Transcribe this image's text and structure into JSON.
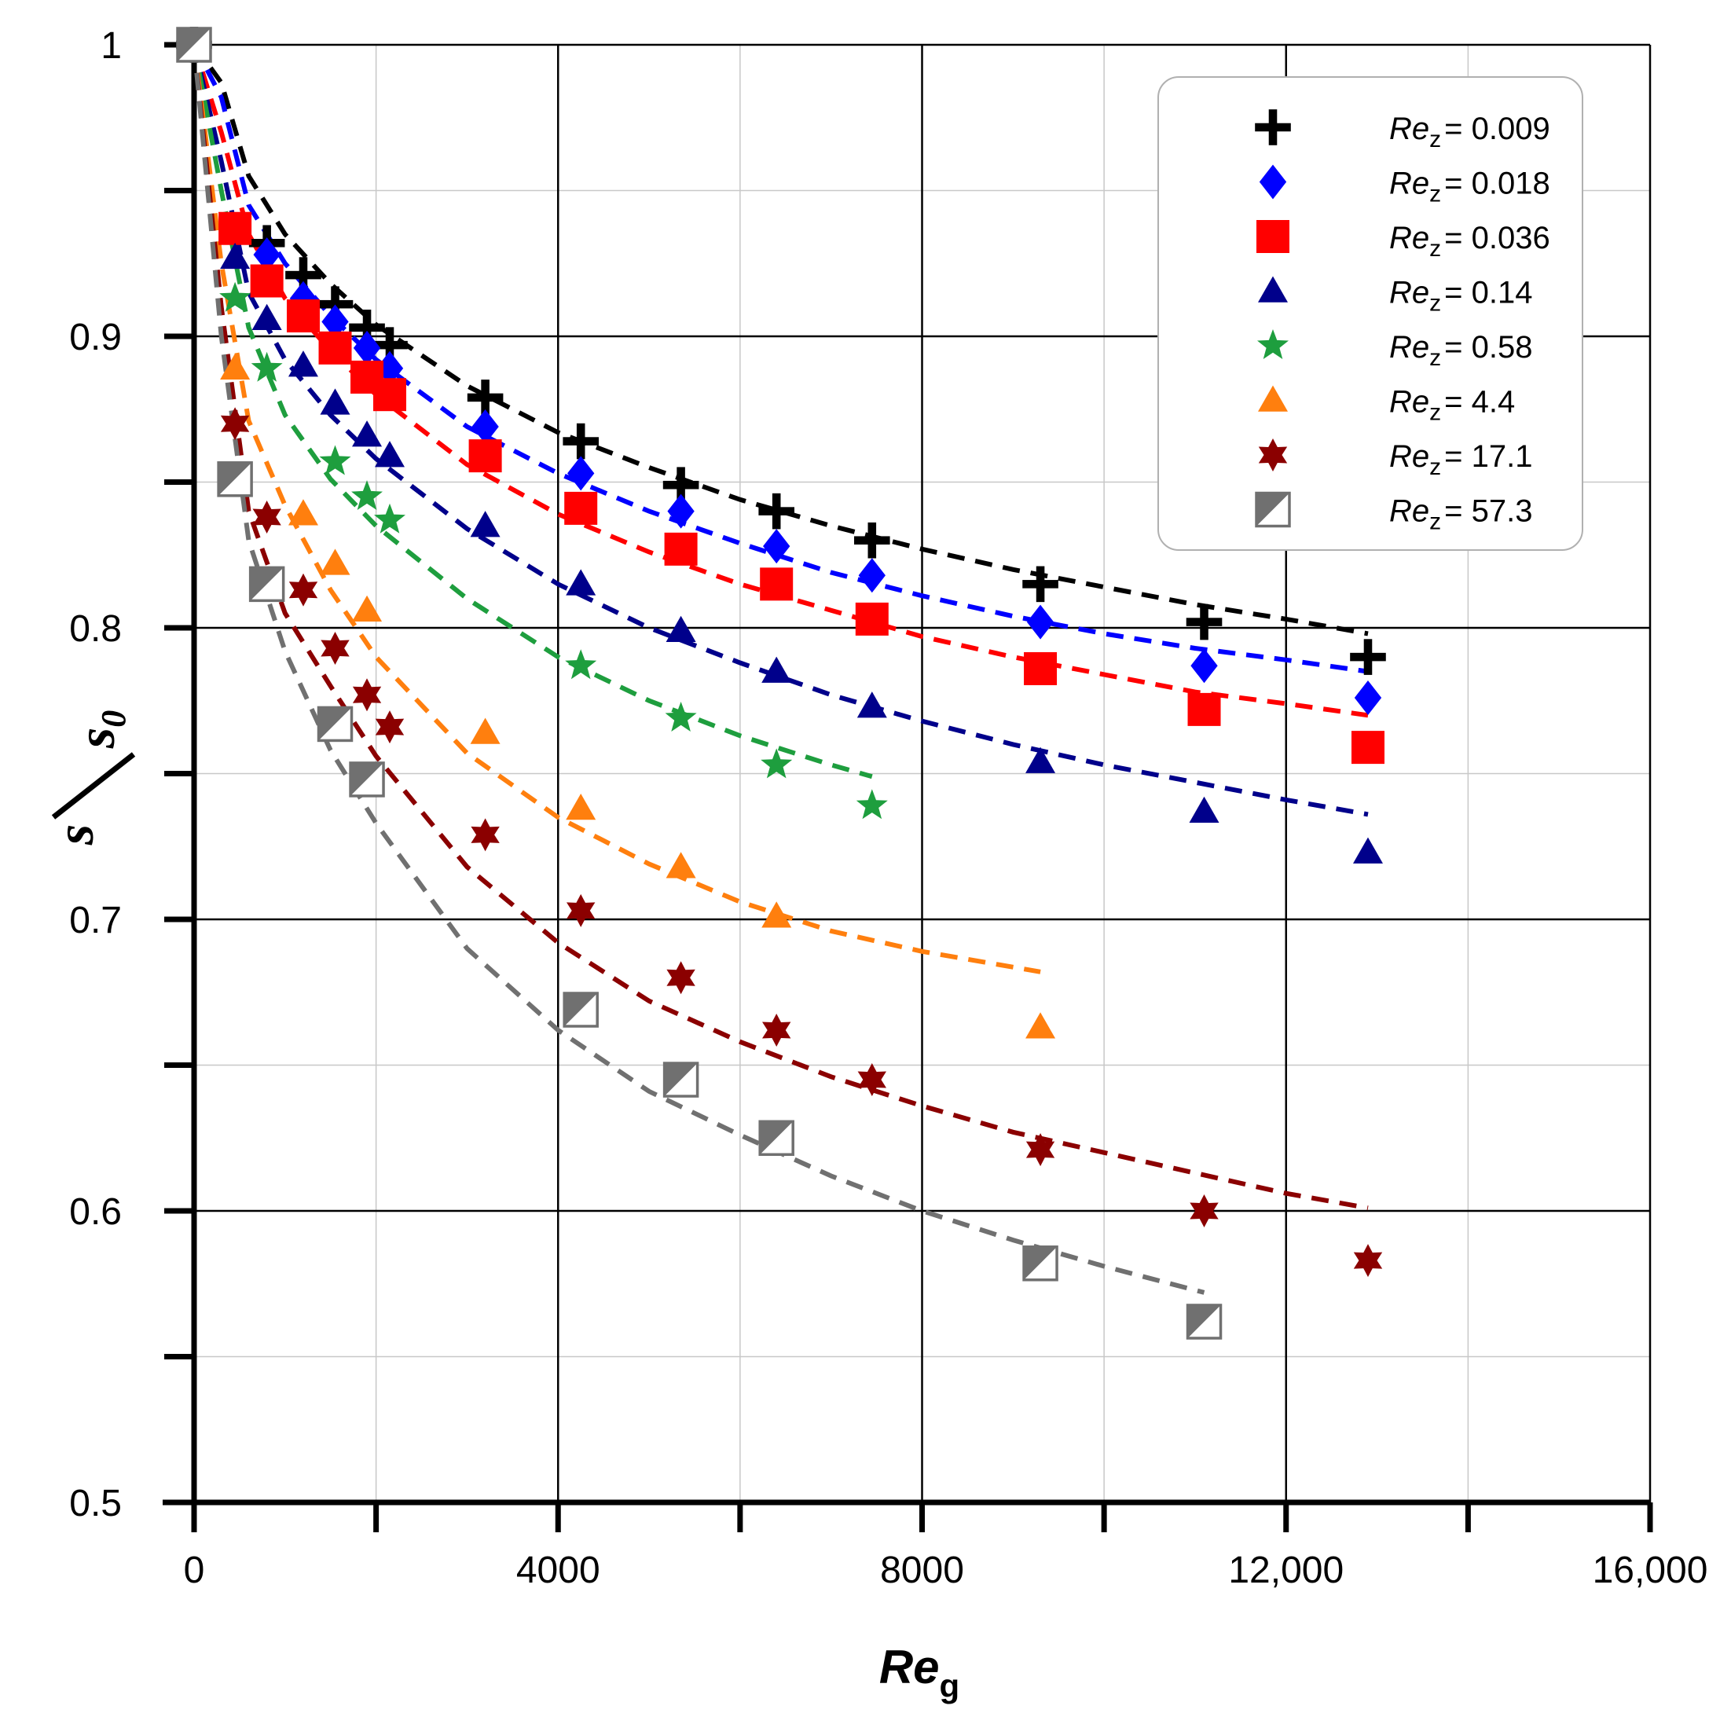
{
  "chart_data": {
    "type": "scatter",
    "title": "",
    "xlabel": "Re",
    "xlabel_sub": "g",
    "ylabel": "s",
    "ylabel_sub": "s",
    "ylabel_sub_index": "0",
    "xlim": [
      0,
      16000
    ],
    "ylim": [
      0.5,
      1.0
    ],
    "x_ticks": [
      0,
      4000,
      8000,
      12000,
      16000
    ],
    "x_tick_labels": [
      "0",
      "4000",
      "8000",
      "12,000",
      "16,000"
    ],
    "x_minor_ticks": [
      2000,
      6000,
      10000,
      14000
    ],
    "y_ticks": [
      0.5,
      0.6,
      0.7,
      0.8,
      0.9,
      1.0
    ],
    "y_tick_labels": [
      "0.5",
      "0.6",
      "0.7",
      "0.8",
      "0.9",
      "1"
    ],
    "y_minor_ticks": [
      0.55,
      0.65,
      0.75,
      0.85,
      0.95
    ],
    "grid": true,
    "legend_position": "top-right",
    "legend_prefix": "Re",
    "legend_prefix_sub": "z",
    "series": [
      {
        "name": "Re_z = 0.009",
        "label_value": "= 0.009",
        "marker": "plus",
        "color": "#000000",
        "x": [
          0,
          800,
          1200,
          1550,
          1900,
          2150,
          3200,
          4250,
          5350,
          6400,
          7450,
          9300,
          11100,
          12900
        ],
        "y": [
          1.0,
          0.932,
          0.921,
          0.911,
          0.903,
          0.897,
          0.879,
          0.864,
          0.849,
          0.84,
          0.83,
          0.815,
          0.802,
          0.79
        ],
        "fit_x": [
          0,
          300,
          600,
          1000,
          1500,
          2000,
          3000,
          4000,
          5000,
          6000,
          7000,
          8000,
          9000,
          10000,
          11000,
          12000,
          12900
        ],
        "fit_y": [
          1.0,
          0.987,
          0.955,
          0.935,
          0.918,
          0.904,
          0.883,
          0.867,
          0.855,
          0.844,
          0.835,
          0.827,
          0.82,
          0.814,
          0.808,
          0.803,
          0.798
        ]
      },
      {
        "name": "Re_z = 0.018",
        "label_value": "= 0.018",
        "marker": "diamond",
        "color": "#0000ff",
        "x": [
          0,
          800,
          1200,
          1550,
          1900,
          2150,
          3200,
          4250,
          5350,
          6400,
          7450,
          9300,
          11100,
          12900
        ],
        "y": [
          1.0,
          0.928,
          0.913,
          0.905,
          0.896,
          0.889,
          0.869,
          0.853,
          0.84,
          0.828,
          0.818,
          0.802,
          0.787,
          0.776
        ],
        "fit_x": [
          0,
          300,
          600,
          1000,
          1500,
          2000,
          3000,
          4000,
          5000,
          6000,
          7000,
          8000,
          9000,
          10000,
          11000,
          12000,
          12900
        ],
        "fit_y": [
          1.0,
          0.982,
          0.945,
          0.925,
          0.907,
          0.892,
          0.869,
          0.853,
          0.84,
          0.829,
          0.819,
          0.811,
          0.804,
          0.798,
          0.793,
          0.789,
          0.785
        ]
      },
      {
        "name": "Re_z = 0.036",
        "label_value": "= 0.036",
        "marker": "square",
        "color": "#ff0000",
        "x": [
          0,
          450,
          800,
          1200,
          1550,
          1900,
          2150,
          3200,
          4250,
          5350,
          6400,
          7450,
          9300,
          11100,
          12900
        ],
        "y": [
          1.0,
          0.937,
          0.919,
          0.907,
          0.896,
          0.886,
          0.88,
          0.859,
          0.841,
          0.827,
          0.815,
          0.803,
          0.786,
          0.772,
          0.759
        ],
        "fit_x": [
          0,
          300,
          600,
          1000,
          1500,
          2000,
          3000,
          4000,
          5000,
          6000,
          7000,
          8000,
          9000,
          10000,
          11000,
          12000,
          12900
        ],
        "fit_y": [
          1.0,
          0.97,
          0.935,
          0.913,
          0.895,
          0.88,
          0.856,
          0.839,
          0.826,
          0.815,
          0.806,
          0.797,
          0.79,
          0.784,
          0.778,
          0.774,
          0.77
        ]
      },
      {
        "name": "Re_z = 0.14",
        "label_value": "= 0.14",
        "marker": "triangle",
        "color": "#00008b",
        "x": [
          0,
          450,
          800,
          1200,
          1550,
          1900,
          2150,
          3200,
          4250,
          5350,
          6400,
          7450,
          9300,
          11100,
          12900
        ],
        "y": [
          1.0,
          0.927,
          0.906,
          0.89,
          0.877,
          0.866,
          0.859,
          0.835,
          0.815,
          0.799,
          0.785,
          0.773,
          0.754,
          0.737,
          0.723
        ],
        "fit_x": [
          0,
          300,
          600,
          1000,
          1500,
          2000,
          3000,
          4000,
          5000,
          6000,
          7000,
          8000,
          9000,
          10000,
          11000,
          12000,
          12900
        ],
        "fit_y": [
          1.0,
          0.96,
          0.915,
          0.892,
          0.873,
          0.858,
          0.834,
          0.815,
          0.8,
          0.788,
          0.777,
          0.768,
          0.76,
          0.753,
          0.747,
          0.741,
          0.736
        ]
      },
      {
        "name": "Re_z = 0.58",
        "label_value": "= 0.58",
        "marker": "star",
        "color": "#1e9e3e",
        "x": [
          0,
          450,
          800,
          1550,
          1900,
          2150,
          4250,
          5350,
          6400,
          7450
        ],
        "y": [
          1.0,
          0.913,
          0.889,
          0.857,
          0.845,
          0.837,
          0.787,
          0.769,
          0.753,
          0.739
        ],
        "fit_x": [
          0,
          300,
          600,
          1000,
          1500,
          2000,
          3000,
          4000,
          5000,
          6000,
          7000,
          7450
        ],
        "fit_y": [
          1.0,
          0.95,
          0.903,
          0.873,
          0.851,
          0.835,
          0.81,
          0.79,
          0.775,
          0.763,
          0.753,
          0.749
        ]
      },
      {
        "name": "Re_z = 4.4",
        "label_value": "= 4.4",
        "marker": "triangle",
        "color": "#ff7f0e",
        "x": [
          0,
          450,
          1200,
          1550,
          1900,
          3200,
          4250,
          5350,
          6400,
          9300
        ],
        "y": [
          1.0,
          0.889,
          0.839,
          0.822,
          0.806,
          0.764,
          0.738,
          0.718,
          0.701,
          0.663
        ],
        "fit_x": [
          0,
          300,
          600,
          1000,
          1500,
          2000,
          3000,
          4000,
          5000,
          6000,
          7000,
          8000,
          9300
        ],
        "fit_y": [
          1.0,
          0.925,
          0.871,
          0.842,
          0.813,
          0.79,
          0.757,
          0.735,
          0.719,
          0.706,
          0.696,
          0.689,
          0.682
        ]
      },
      {
        "name": "Re_z = 17.1",
        "label_value": "= 17.1",
        "marker": "hexstar",
        "color": "#8b0000",
        "x": [
          0,
          450,
          800,
          1200,
          1550,
          1900,
          2150,
          3200,
          4250,
          5350,
          6400,
          7450,
          9300,
          11100,
          12900
        ],
        "y": [
          1.0,
          0.87,
          0.838,
          0.813,
          0.793,
          0.777,
          0.766,
          0.729,
          0.703,
          0.68,
          0.662,
          0.645,
          0.621,
          0.6,
          0.583
        ],
        "fit_x": [
          0,
          300,
          600,
          1000,
          1500,
          2000,
          3000,
          4000,
          5000,
          6000,
          7000,
          8000,
          9000,
          10000,
          11000,
          12000,
          12900
        ],
        "fit_y": [
          1.0,
          0.91,
          0.84,
          0.805,
          0.78,
          0.756,
          0.718,
          0.692,
          0.672,
          0.658,
          0.646,
          0.636,
          0.627,
          0.62,
          0.613,
          0.606,
          0.601
        ]
      },
      {
        "name": "Re_z = 57.3",
        "label_value": "= 57.3",
        "marker": "halfsquare",
        "color": "#707070",
        "x": [
          0,
          450,
          800,
          1550,
          1900,
          4250,
          5350,
          6400,
          9300,
          11100
        ],
        "y": [
          1.0,
          0.851,
          0.815,
          0.767,
          0.748,
          0.669,
          0.645,
          0.625,
          0.582,
          0.562
        ],
        "fit_x": [
          0,
          300,
          600,
          1000,
          1500,
          2000,
          3000,
          4000,
          5000,
          6000,
          7000,
          8000,
          9000,
          10000,
          11100
        ],
        "fit_y": [
          1.0,
          0.9,
          0.83,
          0.792,
          0.758,
          0.733,
          0.69,
          0.662,
          0.641,
          0.626,
          0.612,
          0.6,
          0.59,
          0.581,
          0.572
        ]
      }
    ]
  }
}
